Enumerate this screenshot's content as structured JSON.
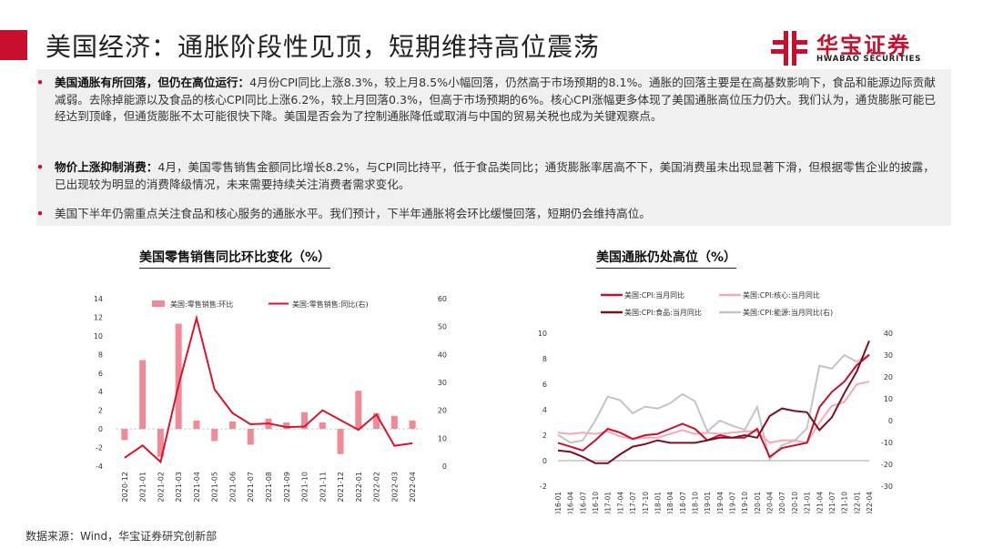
{
  "page": {
    "title": "美国经济：通胀阶段性见顶，短期维持高位震荡",
    "source": "数据来源：Wind，华宝证券研究创新部"
  },
  "logo": {
    "cn": "华宝证券",
    "en": "HWABAO SECURITIES",
    "icon": "hwabao-logo-icon",
    "color": "#c8102e"
  },
  "bullets": [
    {
      "lead": "美国通胀有所回落，但仍在高位运行：",
      "text": "4月份CPI同比上涨8.3%，较上月8.5%小幅回落，仍然高于市场预期的8.1%。通胀的回落主要是在高基数影响下，食品和能源边际贡献减弱。去除掉能源以及食品的核心CPI同比上涨6.2%，较上月回落0.3%，但高于市场预期的6%。核心CPI涨幅更多体现了美国通胀高位压力仍大。我们认为，通货膨胀可能已经达到顶峰，但通货膨胀不太可能很快下降。美国是否会为了控制通胀降低或取消与中国的贸易关税也成为关键观察点。"
    },
    {
      "lead": "物价上涨抑制消费：",
      "text": "4月，美国零售销售金额同比增长8.2%，与CPI同比持平，低于食品类同比；通货膨胀率居高不下，美国消费虽未出现显著下滑，但根据零售企业的披露，已出现较为明显的消费降级情况，未来需要持续关注消费者需求变化。"
    },
    {
      "lead": "",
      "text": "美国下半年仍需重点关注食品和核心服务的通胀水平。我们预计，下半年通胀将会环比缓慢回落，短期仍会维持高位。"
    }
  ],
  "chart_data": [
    {
      "type": "bar+line",
      "title": "美国零售销售同比环比变化（%）",
      "categories": [
        "2020-12",
        "2021-01",
        "2021-02",
        "2021-03",
        "2021-04",
        "2021-05",
        "2021-06",
        "2021-07",
        "2021-08",
        "2021-09",
        "2021-10",
        "2021-11",
        "2021-12",
        "2022-01",
        "2022-02",
        "2022-03",
        "2022-04"
      ],
      "series": [
        {
          "name": "美国:零售销售:环比",
          "kind": "bar",
          "axis": "left",
          "color": "#f08a96",
          "values": [
            -1.2,
            7.4,
            -3.0,
            11.3,
            0.9,
            -1.3,
            0.8,
            -1.7,
            1.1,
            0.7,
            1.8,
            0.7,
            -2.7,
            4.1,
            1.7,
            1.4,
            0.9
          ]
        },
        {
          "name": "美国:零售销售:同比(右)",
          "kind": "line",
          "axis": "right",
          "color": "#d7152b",
          "values": [
            3.0,
            7.4,
            1.5,
            29.0,
            53.0,
            27.5,
            19.0,
            15.0,
            15.3,
            14.0,
            14.2,
            20.0,
            16.5,
            13.0,
            18.5,
            7.3,
            8.2
          ]
        }
      ],
      "ylim_left": [
        -4,
        14
      ],
      "yticks_left": [
        -4,
        -2,
        0,
        2,
        4,
        6,
        8,
        10,
        12,
        14
      ],
      "ylim_right": [
        0,
        60
      ],
      "yticks_right": [
        0,
        10,
        20,
        30,
        40,
        50,
        60
      ],
      "legend": "top"
    },
    {
      "type": "line",
      "title": "美国通胀仍处高位（%）",
      "x_range": [
        "2016-01",
        "2022-04"
      ],
      "categories": [
        "2016-01",
        "2016-04",
        "2016-07",
        "2016-10",
        "2017-01",
        "2017-04",
        "2017-07",
        "2017-10",
        "2018-01",
        "2018-04",
        "2018-07",
        "2018-10",
        "2019-01",
        "2019-04",
        "2019-07",
        "2019-10",
        "2020-01",
        "2020-04",
        "2020-07",
        "2020-10",
        "2021-01",
        "2021-04",
        "2021-07",
        "2021-10",
        "2022-01",
        "2022-04"
      ],
      "series": [
        {
          "name": "美国:CPI:当月同比",
          "axis": "left",
          "color": "#c8102e",
          "values": [
            1.4,
            1.1,
            0.8,
            1.6,
            2.5,
            2.2,
            1.7,
            2.0,
            2.1,
            2.5,
            2.9,
            2.5,
            1.6,
            2.0,
            1.8,
            1.8,
            2.5,
            0.3,
            1.0,
            1.2,
            1.4,
            4.2,
            5.4,
            6.2,
            7.5,
            8.3
          ]
        },
        {
          "name": "美国:CPI:核心:当月同比",
          "axis": "left",
          "color": "#f4a9b4",
          "values": [
            2.2,
            2.1,
            2.2,
            2.1,
            2.3,
            1.9,
            1.7,
            1.8,
            1.8,
            2.1,
            2.4,
            2.1,
            2.2,
            2.1,
            2.2,
            2.3,
            2.3,
            1.4,
            1.6,
            1.6,
            1.4,
            3.0,
            4.3,
            4.6,
            6.0,
            6.2
          ]
        },
        {
          "name": "美国:CPI:食品:当月同比",
          "axis": "left",
          "color": "#7a1020",
          "values": [
            0.8,
            0.7,
            0.3,
            -0.2,
            -0.2,
            0.5,
            1.1,
            1.3,
            1.6,
            1.4,
            1.4,
            1.4,
            1.6,
            1.8,
            1.8,
            2.0,
            1.8,
            3.5,
            4.1,
            3.9,
            3.8,
            2.4,
            3.4,
            5.3,
            7.0,
            9.4
          ]
        },
        {
          "name": "美国:CPI:能源:当月同比(右)",
          "axis": "right",
          "color": "#c4c4c4",
          "values": [
            -6.5,
            -10.1,
            -9.0,
            0.0,
            11.0,
            9.3,
            3.4,
            6.4,
            5.5,
            7.9,
            12.1,
            8.9,
            -4.9,
            0.0,
            -2.3,
            -4.2,
            6.2,
            -17.7,
            -11.2,
            -9.2,
            -3.6,
            25.1,
            23.8,
            30.0,
            27.0,
            30.3
          ]
        }
      ],
      "ylim_left": [
        -2,
        10
      ],
      "yticks_left": [
        -2,
        0,
        2,
        4,
        6,
        8,
        10
      ],
      "ylim_right": [
        -30,
        40
      ],
      "yticks_right": [
        -30,
        -20,
        -10,
        0,
        10,
        20,
        30,
        40
      ],
      "legend": "top"
    }
  ]
}
